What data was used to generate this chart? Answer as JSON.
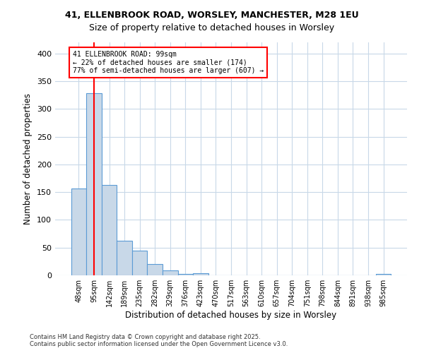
{
  "title1": "41, ELLENBROOK ROAD, WORSLEY, MANCHESTER, M28 1EU",
  "title2": "Size of property relative to detached houses in Worsley",
  "xlabel": "Distribution of detached houses by size in Worsley",
  "ylabel": "Number of detached properties",
  "bin_labels": [
    "48sqm",
    "95sqm",
    "142sqm",
    "189sqm",
    "235sqm",
    "282sqm",
    "329sqm",
    "376sqm",
    "423sqm",
    "470sqm",
    "517sqm",
    "563sqm",
    "610sqm",
    "657sqm",
    "704sqm",
    "751sqm",
    "798sqm",
    "844sqm",
    "891sqm",
    "938sqm",
    "985sqm"
  ],
  "bar_values": [
    156,
    328,
    163,
    63,
    44,
    20,
    9,
    3,
    4,
    0,
    0,
    0,
    0,
    0,
    0,
    0,
    0,
    0,
    0,
    0,
    3
  ],
  "bar_color": "#c8d8e8",
  "bar_edge_color": "#5b9bd5",
  "red_line_x": 1,
  "annotation_text": "41 ELLENBROOK ROAD: 99sqm\n← 22% of detached houses are smaller (174)\n77% of semi-detached houses are larger (607) →",
  "annotation_box_color": "white",
  "annotation_border_color": "red",
  "grid_color": "#c8d8e8",
  "background_color": "white",
  "footer_text": "Contains HM Land Registry data © Crown copyright and database right 2025.\nContains public sector information licensed under the Open Government Licence v3.0.",
  "ylim": [
    0,
    420
  ],
  "yticks": [
    0,
    50,
    100,
    150,
    200,
    250,
    300,
    350,
    400
  ]
}
